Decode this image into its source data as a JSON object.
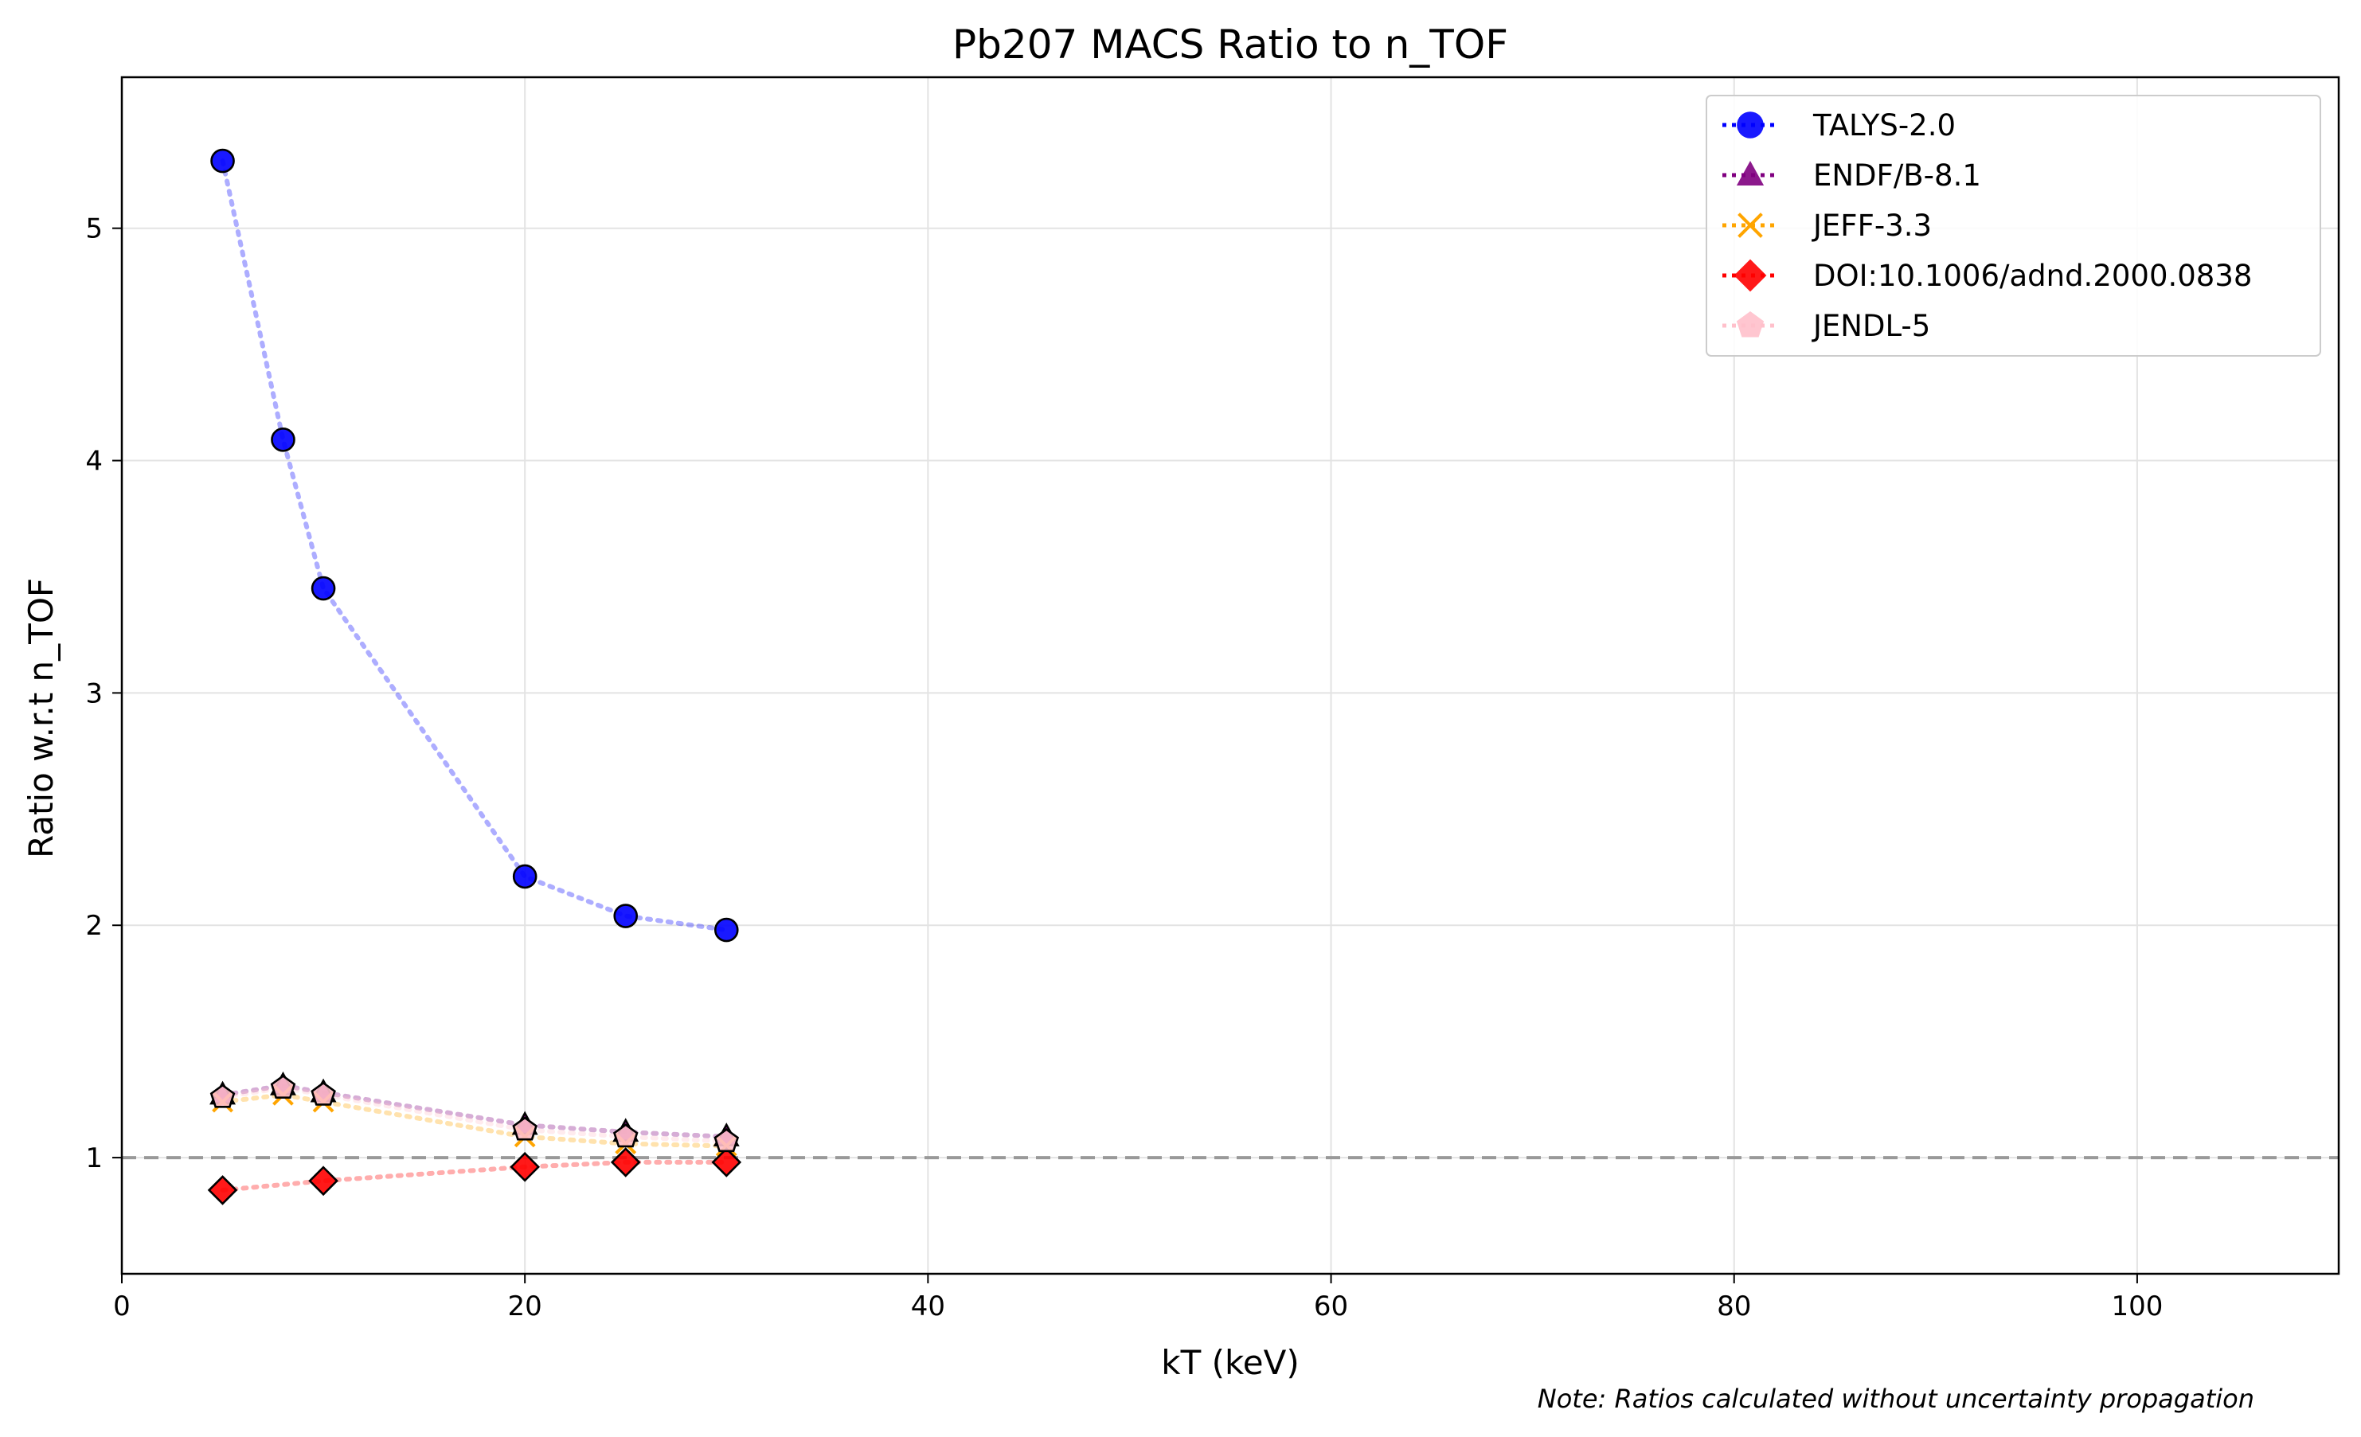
{
  "chart_data": {
    "type": "scatter",
    "title": "Pb207 MACS Ratio to n_TOF",
    "xlabel": "kT (keV)",
    "ylabel": "Ratio w.r.t n_TOF",
    "xlim": [
      0,
      110
    ],
    "ylim": [
      0.5,
      5.65
    ],
    "xticks": [
      0,
      20,
      40,
      60,
      80,
      100
    ],
    "yticks": [
      1,
      2,
      3,
      4,
      5
    ],
    "grid": true,
    "legend_position": "top-right",
    "reference_line": {
      "y": 1,
      "style": "dashed",
      "color": "#999999"
    },
    "note": "Note: Ratios calculated without uncertainty propagation",
    "series": [
      {
        "name": "TALYS-2.0",
        "color": "#0000ff",
        "marker": "circle",
        "x": [
          5,
          8,
          10,
          20,
          25,
          30
        ],
        "y": [
          5.29,
          4.09,
          3.45,
          2.21,
          2.04,
          1.98
        ]
      },
      {
        "name": "ENDF/B-8.1",
        "color": "#800080",
        "marker": "triangle",
        "x": [
          5,
          8,
          10,
          20,
          25,
          30
        ],
        "y": [
          1.27,
          1.31,
          1.28,
          1.14,
          1.11,
          1.09
        ]
      },
      {
        "name": "JEFF-3.3",
        "color": "#ffa500",
        "marker": "x",
        "x": [
          5,
          8,
          10,
          20,
          25,
          30
        ],
        "y": [
          1.24,
          1.27,
          1.24,
          1.09,
          1.06,
          1.05
        ]
      },
      {
        "name": "DOI:10.1006/adnd.2000.0838",
        "color": "#ff0000",
        "marker": "diamond",
        "x": [
          5,
          10,
          20,
          25,
          30
        ],
        "y": [
          0.86,
          0.9,
          0.96,
          0.98,
          0.98
        ]
      },
      {
        "name": "JENDL-5",
        "color": "#ffc0cb",
        "marker": "pentagon",
        "x": [
          5,
          8,
          10,
          20,
          25,
          30
        ],
        "y": [
          1.26,
          1.3,
          1.27,
          1.12,
          1.09,
          1.07
        ]
      }
    ]
  }
}
